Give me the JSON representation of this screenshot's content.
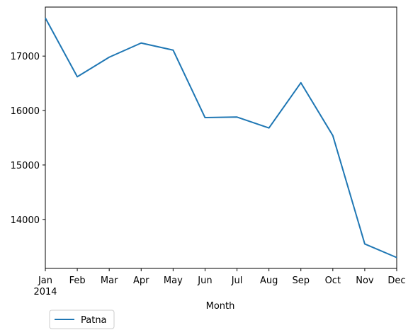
{
  "chart_data": {
    "type": "line",
    "x": [
      "Jan",
      "Feb",
      "Mar",
      "Apr",
      "May",
      "Jun",
      "Jul",
      "Aug",
      "Sep",
      "Oct",
      "Nov",
      "Dec"
    ],
    "x_year_label": "2014",
    "series": [
      {
        "name": "Patna",
        "color": "#1f77b4",
        "values": [
          17700,
          16620,
          16980,
          17240,
          17110,
          15870,
          15880,
          15680,
          16510,
          15540,
          13550,
          13300
        ]
      }
    ],
    "xlabel": "Month",
    "ylabel": "",
    "ylim": [
      13100,
      17900
    ],
    "yticks": [
      14000,
      15000,
      16000,
      17000
    ],
    "grid": false,
    "legend_position": "bottom-left (below axes)"
  }
}
